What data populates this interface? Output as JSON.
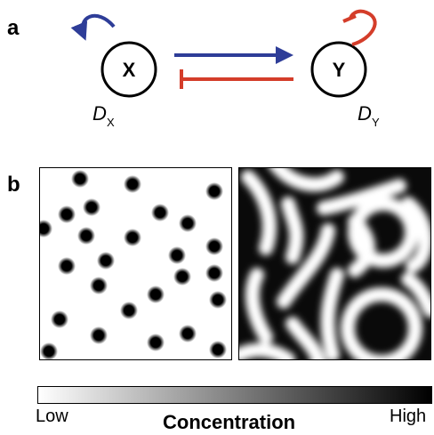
{
  "panels": {
    "a": {
      "label": "a"
    },
    "b": {
      "label": "b"
    }
  },
  "network": {
    "node_x": "X",
    "node_y": "Y",
    "diffusion_x": {
      "symbol": "D",
      "subscript": "X"
    },
    "diffusion_y": {
      "symbol": "D",
      "subscript": "Y"
    },
    "colors": {
      "activation": "#2e3d98",
      "inhibition": "#d43d2a"
    }
  },
  "colorbar": {
    "low_label": "Low",
    "high_label": "High",
    "title": "Concentration",
    "gradient_from": "#ffffff",
    "gradient_to": "#000000"
  }
}
